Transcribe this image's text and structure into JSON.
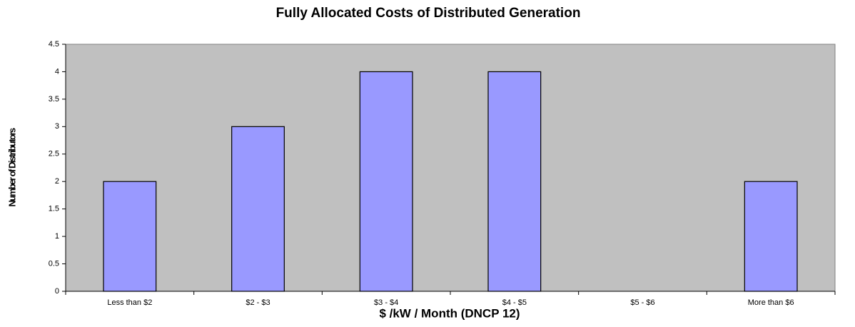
{
  "chart_data": {
    "type": "bar",
    "title": "Fully Allocated Costs of Distributed Generation",
    "x_label": "$ /kW / Month (DNCP 12)",
    "y_label": "Number of Distributors",
    "categories": [
      "Less than $2",
      "$2 - $3",
      "$3 - $4",
      "$4 - $5",
      "$5 - $6",
      "More than $6"
    ],
    "values": [
      2,
      3,
      4,
      4,
      0,
      2
    ],
    "color": "#9999ff",
    "plot_background": "#c0c0c0",
    "ylim": [
      0,
      4.5
    ],
    "yticks": [
      0,
      0.5,
      1,
      1.5,
      2,
      2.5,
      3,
      3.5,
      4,
      4.5
    ],
    "grid": false
  }
}
